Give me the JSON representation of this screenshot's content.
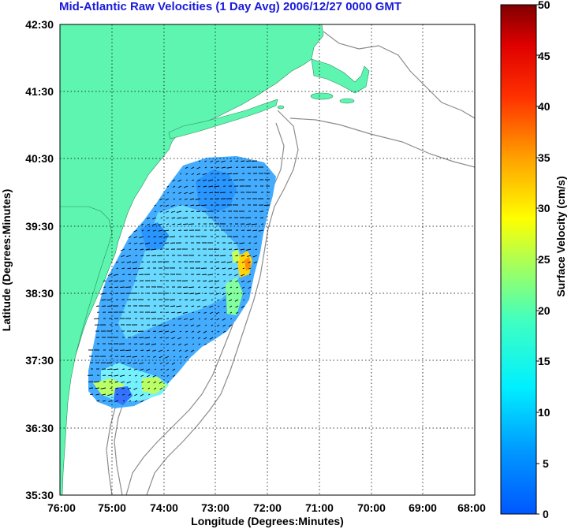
{
  "title": "Mid-Atlantic Raw Velocities (1 Day Avg) 2006/12/27 0000 GMT",
  "map": {
    "xlabel": "Longitude (Degrees:Minutes)",
    "ylabel": "Latitude (Degrees:Minutes)",
    "x_ticks": [
      "76:00",
      "75:00",
      "74:00",
      "73:00",
      "72:00",
      "71:00",
      "70:00",
      "69:00",
      "68:00"
    ],
    "y_ticks": [
      "42:30",
      "41:30",
      "40:30",
      "39:30",
      "38:30",
      "37:30",
      "36:30",
      "35:30"
    ],
    "land_color": "#5ef5b0",
    "ocean_color": "#ffffff",
    "contour_color": "#8c8c8c",
    "grid": "dotted"
  },
  "colorbar": {
    "label": "Surface Velocity (cm/s)",
    "ticks": [
      "50",
      "45",
      "40",
      "35",
      "30",
      "25",
      "20",
      "15",
      "10",
      "5",
      "0"
    ],
    "range": [
      0,
      50
    ],
    "colormap": "jet"
  }
}
